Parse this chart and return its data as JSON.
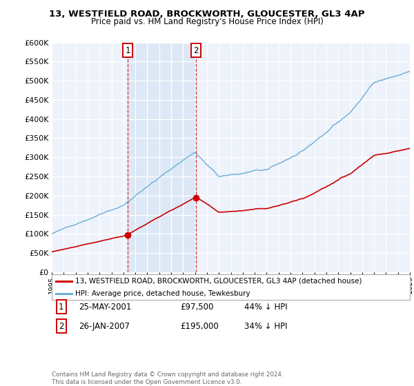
{
  "title": "13, WESTFIELD ROAD, BROCKWORTH, GLOUCESTER, GL3 4AP",
  "subtitle": "Price paid vs. HM Land Registry's House Price Index (HPI)",
  "legend_line1": "13, WESTFIELD ROAD, BROCKWORTH, GLOUCESTER, GL3 4AP (detached house)",
  "legend_line2": "HPI: Average price, detached house, Tewkesbury",
  "footer": "Contains HM Land Registry data © Crown copyright and database right 2024.\nThis data is licensed under the Open Government Licence v3.0.",
  "sale1_label": "1",
  "sale1_date": "25-MAY-2001",
  "sale1_price": "£97,500",
  "sale1_hpi": "44% ↓ HPI",
  "sale2_label": "2",
  "sale2_date": "26-JAN-2007",
  "sale2_price": "£195,000",
  "sale2_hpi": "34% ↓ HPI",
  "sale1_year": 2001.38,
  "sale1_value": 97500,
  "sale2_year": 2007.07,
  "sale2_value": 195000,
  "red_color": "#cc0000",
  "blue_color": "#6aaed6",
  "shade_color": "#ddeeff",
  "ylim_min": 0,
  "ylim_max": 600000,
  "xlim_min": 1995,
  "xlim_max": 2025,
  "background_color": "#eef2fa",
  "grid_color": "#ffffff",
  "title_fontsize": 9.5,
  "subtitle_fontsize": 8.5
}
